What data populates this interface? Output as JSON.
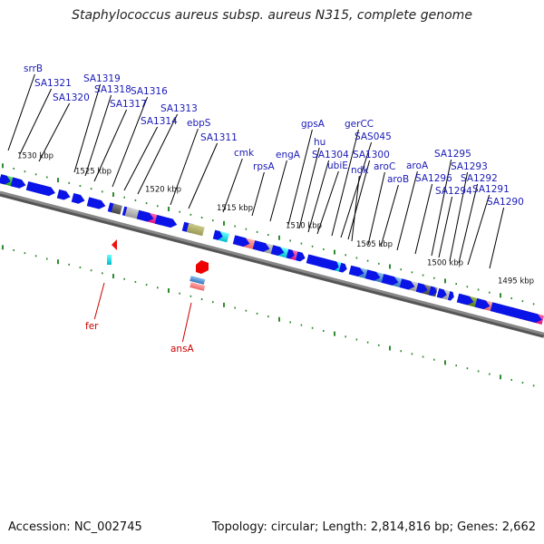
{
  "title": "Staphylococcus aureus subsp. aureus N315, complete genome",
  "footer": {
    "accession": "Accession: NC_002745",
    "stats": "Topology: circular; Length: 2,814,816 bp; Genes: 2,662"
  },
  "colors": {
    "gene_label": "#1a1ab8",
    "rna_label": "#cc0000",
    "backbone": "#888888",
    "tick": "#2e8b2e",
    "cds": "#0a14e6"
  },
  "ticks": [
    {
      "label": "1530 kbp"
    },
    {
      "label": "1525 kbp"
    },
    {
      "label": "1520 kbp"
    },
    {
      "label": "1515 kbp"
    },
    {
      "label": "1510 kbp"
    },
    {
      "label": "1505 kbp"
    },
    {
      "label": "1500 kbp"
    },
    {
      "label": "1495 kbp"
    }
  ],
  "gene_labels": [
    {
      "text": "srrB"
    },
    {
      "text": "SA1321"
    },
    {
      "text": "SA1320"
    },
    {
      "text": "SA1319"
    },
    {
      "text": "SA1318"
    },
    {
      "text": "SA1317"
    },
    {
      "text": "SA1316"
    },
    {
      "text": "SA1314"
    },
    {
      "text": "SA1313"
    },
    {
      "text": "ebpS"
    },
    {
      "text": "SA1311"
    },
    {
      "text": "cmk"
    },
    {
      "text": "rpsA"
    },
    {
      "text": "engA"
    },
    {
      "text": "gpsA"
    },
    {
      "text": "hu"
    },
    {
      "text": "SA1304"
    },
    {
      "text": "ubiE"
    },
    {
      "text": "gerCC"
    },
    {
      "text": "SAS045"
    },
    {
      "text": "SA1300"
    },
    {
      "text": "ndk"
    },
    {
      "text": "aroC"
    },
    {
      "text": "aroB"
    },
    {
      "text": "aroA"
    },
    {
      "text": "SA1296"
    },
    {
      "text": "SA1295"
    },
    {
      "text": "SA1294"
    },
    {
      "text": "SA1293"
    },
    {
      "text": "SA1292"
    },
    {
      "text": "SA1291"
    },
    {
      "text": "SA1290"
    }
  ],
  "rna_labels": [
    {
      "text": "fer"
    },
    {
      "text": "ansA"
    }
  ]
}
